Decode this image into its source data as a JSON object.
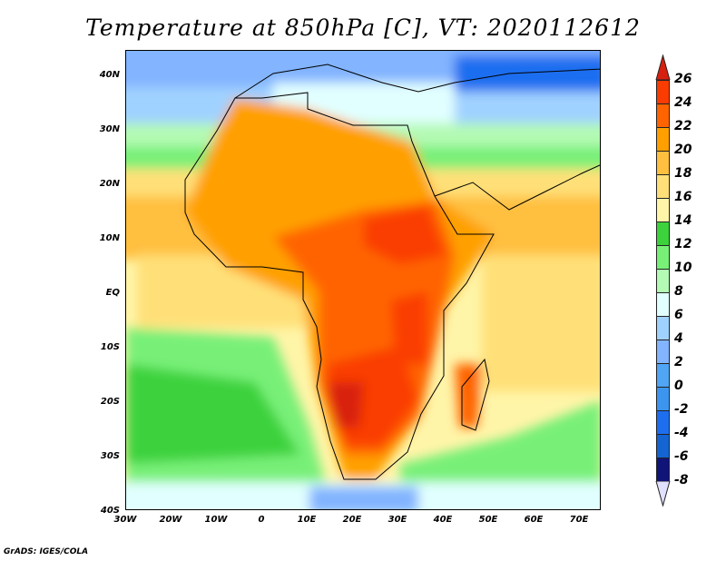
{
  "title": "Temperature at 850hPa [C], VT: 2020112612",
  "x_axis": [
    "30W",
    "20W",
    "10W",
    "0",
    "10E",
    "20E",
    "30E",
    "40E",
    "50E",
    "60E",
    "70E"
  ],
  "y_axis": [
    "40N",
    "30N",
    "20N",
    "10N",
    "EQ",
    "10S",
    "20S",
    "30S",
    "40S"
  ],
  "colorbar": {
    "labels": [
      "26",
      "24",
      "22",
      "20",
      "18",
      "16",
      "14",
      "12",
      "10",
      "8",
      "6",
      "4",
      "2",
      "0",
      "-2",
      "-4",
      "-6",
      "-8"
    ],
    "colors_top_to_bottom": [
      "#d82010",
      "#fa3c00",
      "#ff6400",
      "#ffa000",
      "#ffc040",
      "#ffe078",
      "#fff5a8",
      "#3cd23c",
      "#78f078",
      "#b4fab4",
      "#e1ffff",
      "#a0d2ff",
      "#82b4ff",
      "#50a5f5",
      "#3c96f0",
      "#1e6ef0",
      "#1464d2",
      "#101478",
      "#e0e0ff"
    ]
  },
  "credit": "GrADS: IGES/COLA"
}
